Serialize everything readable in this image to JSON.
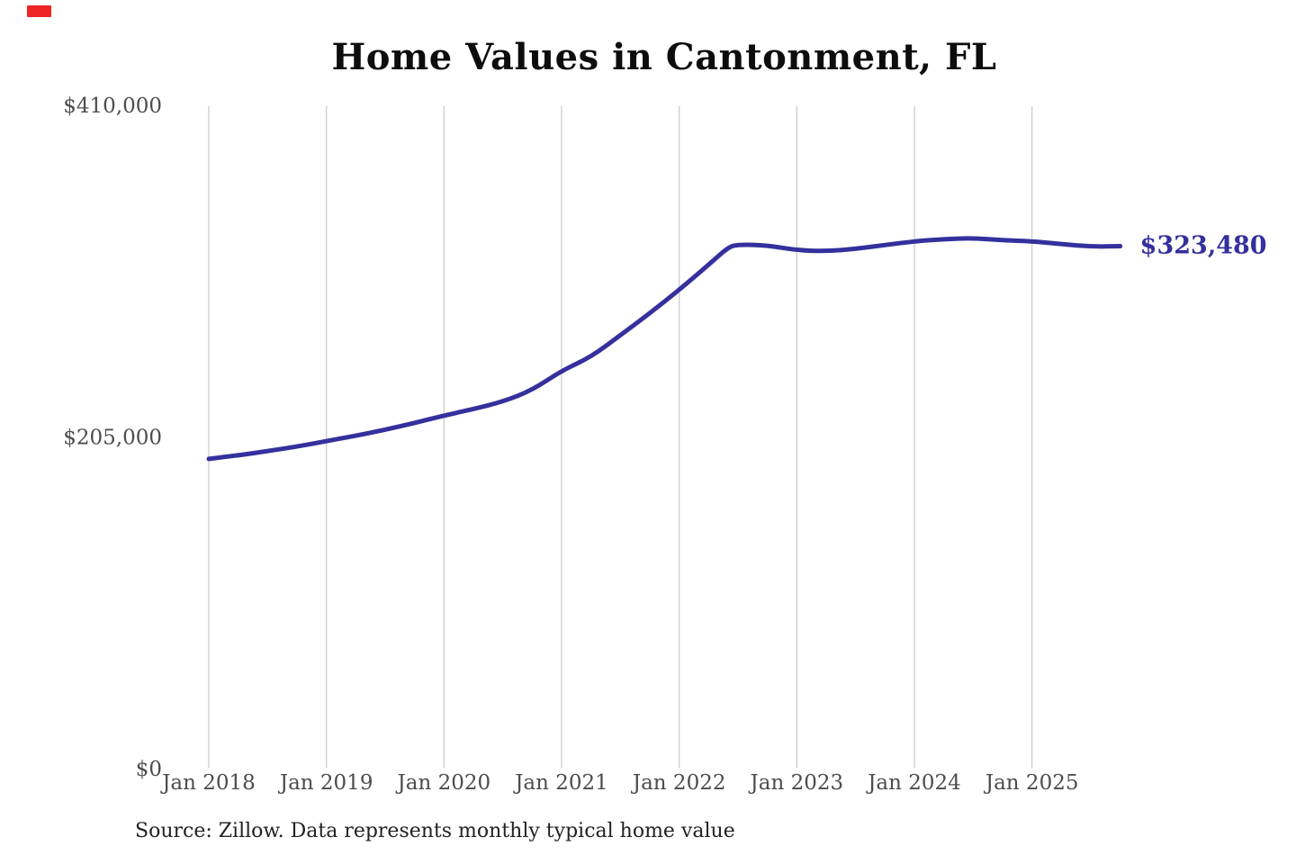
{
  "page": {
    "background": "#ffffff"
  },
  "indicator": {
    "name": "recording-indicator",
    "color": "#ee2524"
  },
  "chart_data": {
    "type": "line",
    "title": "Home Values in Cantonment, FL",
    "source_note": "Source: Zillow. Data represents monthly typical home value",
    "series_name": "Monthly typical home value",
    "end_label": "$323,480",
    "final_value": 323480,
    "xlabel": "",
    "ylabel": "",
    "ylim": [
      0,
      410000
    ],
    "grid": "vertical-only",
    "legend": "none",
    "colors": {
      "line": "#34309d",
      "end_label": "#34309d",
      "grid": "#cccccc",
      "axis_text": "#4d4d4d",
      "title_text": "#0d0d0d",
      "source_text": "#222222"
    },
    "y_ticks": [
      {
        "label": "$0",
        "value": 0
      },
      {
        "label": "$205,000",
        "value": 205000
      },
      {
        "label": "$410,000",
        "value": 410000
      }
    ],
    "x_ticks": [
      {
        "label": "Jan 2018",
        "m": 0
      },
      {
        "label": "Jan 2019",
        "m": 12
      },
      {
        "label": "Jan 2020",
        "m": 24
      },
      {
        "label": "Jan 2021",
        "m": 36
      },
      {
        "label": "Jan 2022",
        "m": 48
      },
      {
        "label": "Jan 2023",
        "m": 60
      },
      {
        "label": "Jan 2024",
        "m": 72
      },
      {
        "label": "Jan 2025",
        "m": 84
      }
    ],
    "points": [
      {
        "date": "Jan 2018",
        "m": 0,
        "value": 192000
      },
      {
        "date": "Apr 2018",
        "m": 3,
        "value": 194200
      },
      {
        "date": "Jul 2018",
        "m": 6,
        "value": 196800
      },
      {
        "date": "Oct 2018",
        "m": 9,
        "value": 199600
      },
      {
        "date": "Jan 2019",
        "m": 12,
        "value": 203000
      },
      {
        "date": "Apr 2019",
        "m": 15,
        "value": 206300
      },
      {
        "date": "Jul 2019",
        "m": 18,
        "value": 210000
      },
      {
        "date": "Oct 2019",
        "m": 21,
        "value": 214200
      },
      {
        "date": "Jan 2020",
        "m": 24,
        "value": 218800
      },
      {
        "date": "Apr 2020",
        "m": 27,
        "value": 222800
      },
      {
        "date": "Jul 2020",
        "m": 30,
        "value": 227400
      },
      {
        "date": "Oct 2020",
        "m": 33,
        "value": 234500
      },
      {
        "date": "Jan 2021",
        "m": 36,
        "value": 246500
      },
      {
        "date": "Apr 2021",
        "m": 39,
        "value": 255000
      },
      {
        "date": "Jul 2021",
        "m": 42,
        "value": 268500
      },
      {
        "date": "Oct 2021",
        "m": 45,
        "value": 282000
      },
      {
        "date": "Jan 2022",
        "m": 48,
        "value": 296500
      },
      {
        "date": "Apr 2022",
        "m": 51,
        "value": 312000
      },
      {
        "date": "Jun 2022",
        "m": 53,
        "value": 322800
      },
      {
        "date": "Jul 2022",
        "m": 54,
        "value": 324500
      },
      {
        "date": "Oct 2022",
        "m": 57,
        "value": 324000
      },
      {
        "date": "Jan 2023",
        "m": 60,
        "value": 321000
      },
      {
        "date": "Apr 2023",
        "m": 63,
        "value": 320300
      },
      {
        "date": "Jul 2023",
        "m": 66,
        "value": 321800
      },
      {
        "date": "Oct 2023",
        "m": 69,
        "value": 324200
      },
      {
        "date": "Jan 2024",
        "m": 72,
        "value": 326500
      },
      {
        "date": "Apr 2024",
        "m": 75,
        "value": 327800
      },
      {
        "date": "Jul 2024",
        "m": 78,
        "value": 328500
      },
      {
        "date": "Oct 2024",
        "m": 81,
        "value": 327200
      },
      {
        "date": "Jan 2025",
        "m": 84,
        "value": 326500
      },
      {
        "date": "Apr 2025",
        "m": 87,
        "value": 324800
      },
      {
        "date": "Jul 2025",
        "m": 90,
        "value": 323200
      },
      {
        "date": "Oct 2025",
        "m": 93,
        "value": 323480
      }
    ]
  }
}
